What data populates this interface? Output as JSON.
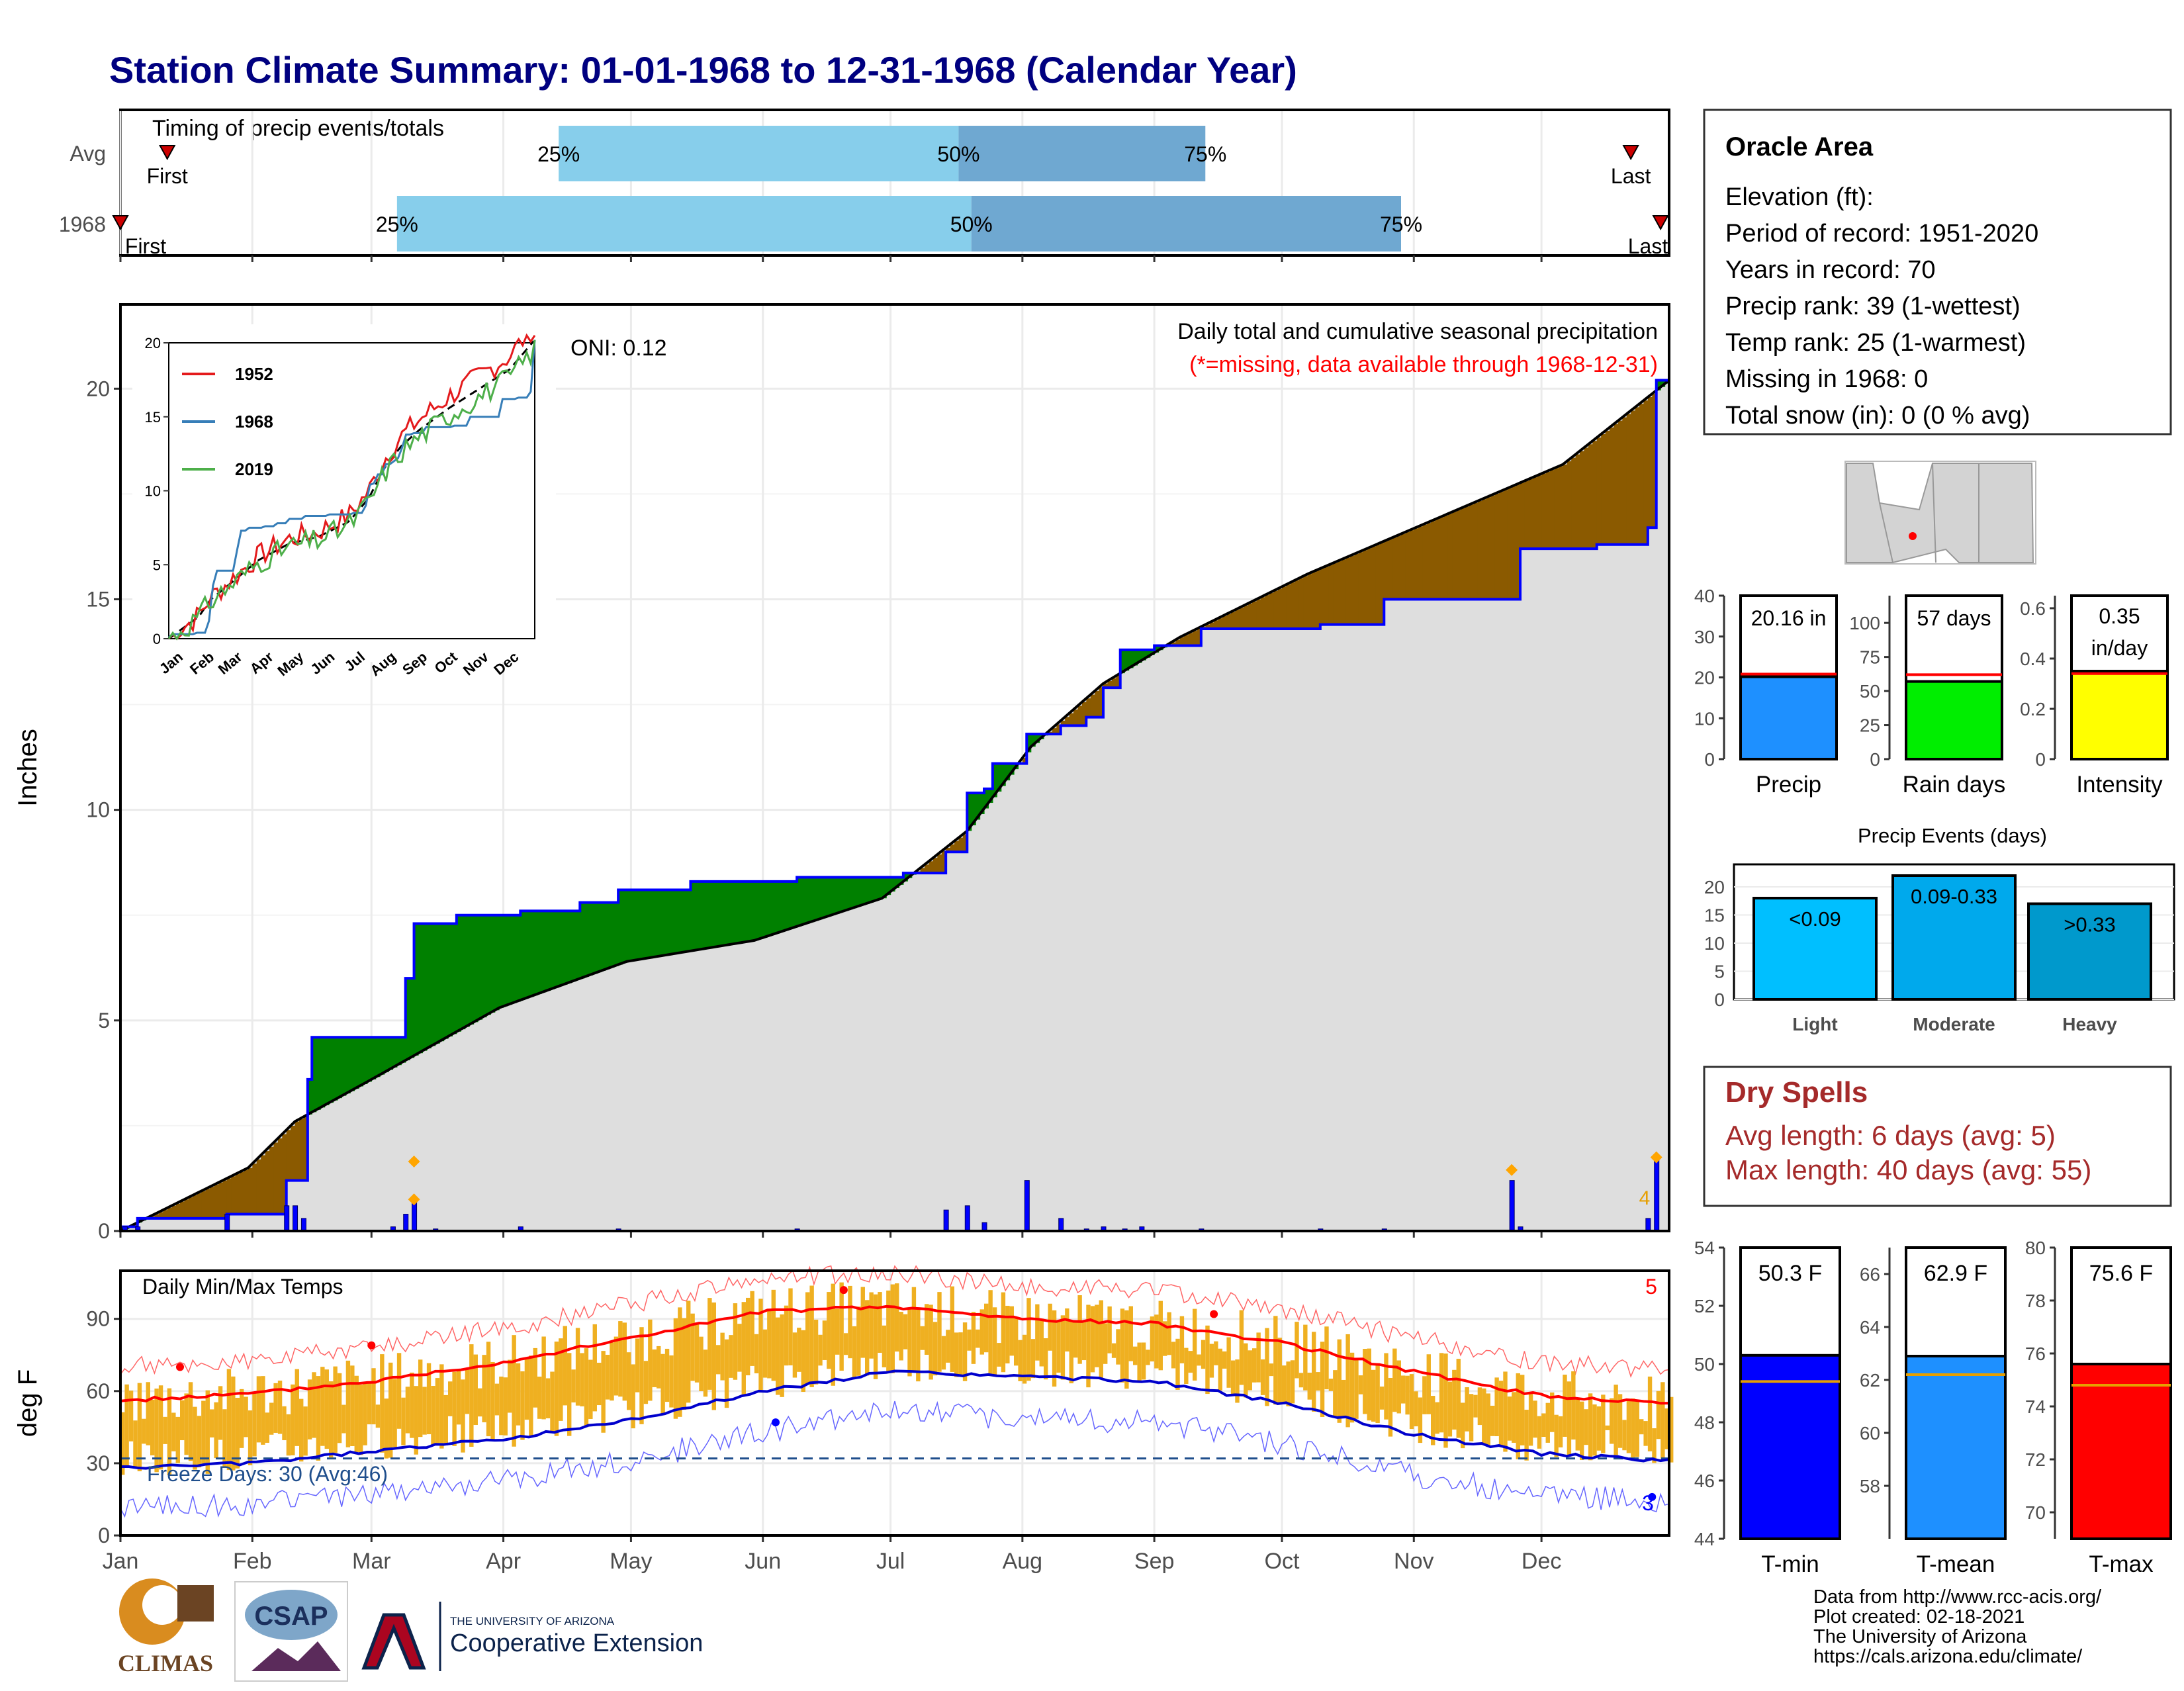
{
  "title": "Station Climate Summary: 01-01-1968 to 12-31-1968 (Calendar Year)",
  "months": [
    "Jan",
    "Feb",
    "Mar",
    "Apr",
    "May",
    "Jun",
    "Jul",
    "Aug",
    "Sep",
    "Oct",
    "Nov",
    "Dec"
  ],
  "timing": {
    "title": "Timing of precip events/totals",
    "rows": [
      {
        "label": "Avg",
        "first_label": "First",
        "last_label": "Last",
        "p25": "25%",
        "p50": "50%",
        "p75": "75%",
        "first_day": 12,
        "p25_day": 104,
        "p50_day": 198,
        "p75_day": 256,
        "last_day": 356
      },
      {
        "label": "1968",
        "first_label": "First",
        "last_label": "Last",
        "p25": "25%",
        "p50": "50%",
        "p75": "75%",
        "first_day": 1,
        "p25_day": 66,
        "p50_day": 201,
        "p75_day": 302,
        "last_day": 363
      }
    ]
  },
  "precip": {
    "ylabel": "Inches",
    "oni": "ONI: 0.12",
    "subtitle": "Daily total and cumulative seasonal precipitation",
    "missing_note": "(*=missing, data available through 1968-12-31)",
    "flag_count": "4",
    "inset": {
      "legend": [
        "1952",
        "1968",
        "2019"
      ],
      "colors": [
        "#e41a1c",
        "#377eb8",
        "#4daf4a"
      ]
    }
  },
  "temps": {
    "ylabel": "deg F",
    "title": "Daily Min/Max Temps",
    "freeze": "Freeze Days: 30 (Avg:46)",
    "hi_count": "5",
    "lo_count": "3"
  },
  "station": {
    "name": "Oracle Area",
    "lines": [
      "Elevation (ft):",
      "Period of record: 1951-2020",
      "Years in record: 70",
      "Precip rank: 39 (1-wettest)",
      "Temp rank: 25 (1-warmest)",
      "Missing in 1968: 0",
      "Total snow (in): 0 (0 % avg)"
    ]
  },
  "summary_bars": [
    {
      "label": "Precip",
      "value_text": "20.16 in",
      "value": 20.16,
      "avg": 20.8,
      "max": 40,
      "ticks": [
        0,
        10,
        20,
        30,
        40
      ],
      "color": "#1e90ff"
    },
    {
      "label": "Rain days",
      "value_text": "57 days",
      "value": 57,
      "avg": 62,
      "max": 120,
      "ticks": [
        0,
        25,
        50,
        75,
        100
      ],
      "color": "#00ee00"
    },
    {
      "label": "Intensity",
      "value_text_1": "0.35",
      "value_text_2": "in/day",
      "value": 0.35,
      "avg": 0.34,
      "max": 0.65,
      "ticks": [
        0.0,
        0.2,
        0.4,
        0.6
      ],
      "color": "#ffff00"
    }
  ],
  "events": {
    "title": "Precip Events (days)",
    "categories": [
      "Light",
      "Moderate",
      "Heavy"
    ],
    "labels": [
      "<0.09",
      "0.09-0.33",
      ">0.33"
    ],
    "values": [
      18,
      22,
      17
    ],
    "colors": [
      "#00bfff",
      "#00a9ec",
      "#0099cc"
    ],
    "ticks": [
      0,
      5,
      10,
      15,
      20
    ]
  },
  "dry": {
    "title": "Dry Spells",
    "avg": "Avg length: 6 days (avg: 5)",
    "max": "Max length: 40 days (avg: 55)"
  },
  "temp_bars": [
    {
      "label": "T-min",
      "value_text": "50.3 F",
      "value": 50.3,
      "avg": 49.4,
      "min": 44,
      "max": 54,
      "ticks": [
        44,
        46,
        48,
        50,
        52,
        54
      ],
      "color": "#0000ff"
    },
    {
      "label": "T-mean",
      "value_text": "62.9 F",
      "value": 62.9,
      "avg": 62.2,
      "min": 56,
      "max": 67,
      "ticks": [
        58,
        60,
        62,
        64,
        66
      ],
      "color": "#1e90ff"
    },
    {
      "label": "T-max",
      "value_text": "75.6 F",
      "value": 75.6,
      "avg": 74.8,
      "min": 69,
      "max": 80,
      "ticks": [
        70,
        72,
        74,
        76,
        78,
        80
      ],
      "color": "#ff0000"
    }
  ],
  "footer": {
    "lines": [
      "Data from http://www.rcc-acis.org/",
      "Plot created: 02-18-2021",
      "The University of Arizona",
      "https://cals.arizona.edu/climate/"
    ],
    "logo1": "CLIMAS",
    "logo2": "CSAP",
    "logo3_top": "THE UNIVERSITY OF ARIZONA",
    "logo3_bottom": "Cooperative Extension"
  },
  "chart_data": {
    "type": "area",
    "title": "Daily total and cumulative seasonal precipitation",
    "ylabel": "Inches",
    "ylim": [
      0,
      22
    ],
    "x_days_month_start": [
      1,
      32,
      60,
      91,
      121,
      152,
      182,
      213,
      244,
      274,
      305,
      335
    ],
    "cumulative_1968": [
      [
        1,
        0.1
      ],
      [
        5,
        0.3
      ],
      [
        26,
        0.4
      ],
      [
        40,
        1.2
      ],
      [
        45,
        3.6
      ],
      [
        46,
        4.6
      ],
      [
        65,
        4.6
      ],
      [
        68,
        6.0
      ],
      [
        70,
        7.3
      ],
      [
        80,
        7.5
      ],
      [
        95,
        7.6
      ],
      [
        109,
        7.8
      ],
      [
        118,
        8.1
      ],
      [
        135,
        8.3
      ],
      [
        160,
        8.4
      ],
      [
        185,
        8.5
      ],
      [
        195,
        9.0
      ],
      [
        200,
        10.4
      ],
      [
        204,
        10.5
      ],
      [
        206,
        11.1
      ],
      [
        214,
        11.8
      ],
      [
        222,
        12.0
      ],
      [
        228,
        12.2
      ],
      [
        232,
        12.9
      ],
      [
        236,
        13.8
      ],
      [
        244,
        13.9
      ],
      [
        255,
        14.3
      ],
      [
        283,
        14.4
      ],
      [
        298,
        15.0
      ],
      [
        328,
        15.0
      ],
      [
        330,
        16.2
      ],
      [
        348,
        16.3
      ],
      [
        360,
        16.7
      ],
      [
        362,
        20.2
      ],
      [
        365,
        20.2
      ]
    ],
    "cumulative_avg": [
      [
        1,
        0.0
      ],
      [
        31,
        1.5
      ],
      [
        42,
        2.6
      ],
      [
        60,
        3.6
      ],
      [
        90,
        5.3
      ],
      [
        120,
        6.4
      ],
      [
        150,
        6.9
      ],
      [
        180,
        7.9
      ],
      [
        200,
        9.5
      ],
      [
        215,
        11.5
      ],
      [
        232,
        13.0
      ],
      [
        250,
        14.1
      ],
      [
        280,
        15.6
      ],
      [
        310,
        16.9
      ],
      [
        340,
        18.2
      ],
      [
        365,
        20.2
      ]
    ],
    "daily_events_1968": [
      [
        2,
        0.1
      ],
      [
        5,
        0.1
      ],
      [
        26,
        0.4
      ],
      [
        40,
        0.6
      ],
      [
        42,
        0.6
      ],
      [
        44,
        0.3
      ],
      [
        65,
        0.1
      ],
      [
        68,
        0.4
      ],
      [
        70,
        0.7
      ],
      [
        75,
        0.05
      ],
      [
        95,
        0.1
      ],
      [
        118,
        0.05
      ],
      [
        160,
        0.05
      ],
      [
        195,
        0.5
      ],
      [
        200,
        0.6
      ],
      [
        204,
        0.2
      ],
      [
        214,
        1.2
      ],
      [
        222,
        0.3
      ],
      [
        228,
        0.05
      ],
      [
        232,
        0.1
      ],
      [
        237,
        0.05
      ],
      [
        241,
        0.1
      ],
      [
        255,
        0.05
      ],
      [
        283,
        0.05
      ],
      [
        298,
        0.05
      ],
      [
        328,
        1.2
      ],
      [
        330,
        0.1
      ],
      [
        360,
        0.3
      ],
      [
        362,
        1.8
      ]
    ],
    "temps": {
      "ylim": [
        0,
        110
      ],
      "avg_max": [
        [
          1,
          56
        ],
        [
          32,
          59
        ],
        [
          60,
          64
        ],
        [
          91,
          72
        ],
        [
          121,
          82
        ],
        [
          152,
          93
        ],
        [
          182,
          95
        ],
        [
          213,
          90
        ],
        [
          244,
          88
        ],
        [
          274,
          80
        ],
        [
          305,
          68
        ],
        [
          335,
          58
        ],
        [
          365,
          55
        ]
      ],
      "avg_min": [
        [
          1,
          28
        ],
        [
          32,
          30
        ],
        [
          60,
          35
        ],
        [
          91,
          40
        ],
        [
          121,
          48
        ],
        [
          152,
          60
        ],
        [
          182,
          68
        ],
        [
          213,
          66
        ],
        [
          244,
          64
        ],
        [
          274,
          55
        ],
        [
          305,
          42
        ],
        [
          335,
          34
        ],
        [
          365,
          31
        ]
      ],
      "freeze_line": 32
    }
  }
}
